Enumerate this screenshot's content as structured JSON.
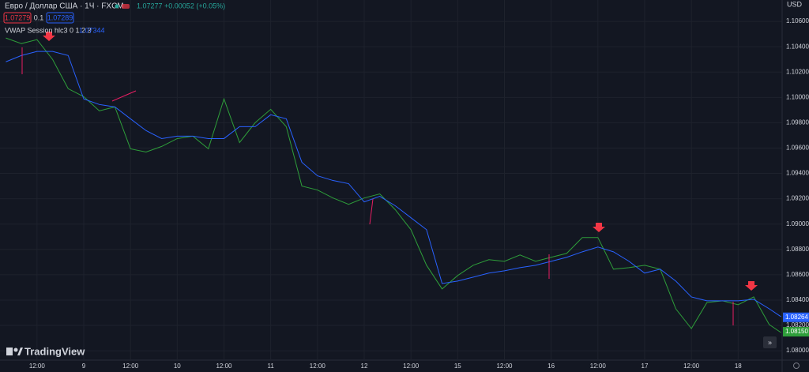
{
  "chart_data": {
    "type": "line",
    "title": "Евро / Доллар США · 1Ч · FXCM",
    "header_quote": "1.07277 +0.00052 (+0.05%)",
    "buttons": [
      "1.07279",
      "0.1",
      "1.07289"
    ],
    "indicator_value": "1.07344",
    "currency": "USD",
    "brand": "TradingView",
    "x": [
      4,
      8,
      12,
      16,
      20,
      24,
      28,
      32,
      36,
      40,
      44,
      48,
      52,
      56,
      60,
      64,
      68,
      72,
      76,
      80,
      84,
      88,
      92,
      96,
      100,
      104,
      108,
      112,
      116,
      120,
      124,
      128,
      132,
      136,
      140,
      144,
      148,
      152,
      156,
      160,
      164,
      168,
      172,
      176,
      180,
      184,
      188,
      192,
      196,
      200,
      203
    ],
    "xlim": [
      2.5,
      203.3
    ],
    "xticks": [
      {
        "value": 12,
        "label": "12:00"
      },
      {
        "value": 24,
        "label": "9"
      },
      {
        "value": 36,
        "label": "12:00"
      },
      {
        "value": 48,
        "label": "10"
      },
      {
        "value": 60,
        "label": "12:00"
      },
      {
        "value": 72,
        "label": "11"
      },
      {
        "value": 84,
        "label": "12:00"
      },
      {
        "value": 96,
        "label": "12"
      },
      {
        "value": 108,
        "label": "12:00"
      },
      {
        "value": 120,
        "label": "15"
      },
      {
        "value": 132,
        "label": "12:00"
      },
      {
        "value": 144,
        "label": "16"
      },
      {
        "value": 156,
        "label": "12:00"
      },
      {
        "value": 168,
        "label": "17"
      },
      {
        "value": 180,
        "label": "12:00"
      },
      {
        "value": 192,
        "label": "18"
      }
    ],
    "ylim": [
      1.07932,
      1.10769
    ],
    "yticks": [
      {
        "value": 1.106,
        "label": "1.10600"
      },
      {
        "value": 1.104,
        "label": "1.10400"
      },
      {
        "value": 1.102,
        "label": "1.10200"
      },
      {
        "value": 1.1,
        "label": "1.10000"
      },
      {
        "value": 1.098,
        "label": "1.09800"
      },
      {
        "value": 1.096,
        "label": "1.09600"
      },
      {
        "value": 1.094,
        "label": "1.09400"
      },
      {
        "value": 1.092,
        "label": "1.09200"
      },
      {
        "value": 1.09,
        "label": "1.09000"
      },
      {
        "value": 1.088,
        "label": "1.08800"
      },
      {
        "value": 1.086,
        "label": "1.08600"
      },
      {
        "value": 1.084,
        "label": "1.08400"
      },
      {
        "value": 1.082,
        "label": "1.08200"
      },
      {
        "value": 1.08,
        "label": "1.08000"
      }
    ],
    "grid": true,
    "series": [
      {
        "color": "#2e9e3a",
        "last_label": "1.08150",
        "last_value": 1.0815,
        "values": [
          1.10469,
          1.10425,
          1.10456,
          1.103,
          1.10069,
          1.10006,
          1.09894,
          1.09925,
          1.09594,
          1.09569,
          1.09613,
          1.09675,
          1.09694,
          1.09594,
          1.09988,
          1.09644,
          1.098,
          1.09906,
          1.09769,
          1.093,
          1.09269,
          1.09206,
          1.09156,
          1.09206,
          1.09238,
          1.09113,
          1.08956,
          1.08675,
          1.08488,
          1.08594,
          1.08675,
          1.08719,
          1.08706,
          1.08756,
          1.08706,
          1.08738,
          1.08769,
          1.08894,
          1.08894,
          1.08644,
          1.08656,
          1.08675,
          1.08644,
          1.08331,
          1.08175,
          1.08381,
          1.08394,
          1.08363,
          1.08425,
          1.08206,
          1.08144
        ]
      },
      {
        "name": "VWAP Session hlc3 0 1 2 3",
        "color": "#2962ff",
        "last_label": "1.08264",
        "last_value": 1.08264,
        "values": [
          1.10281,
          1.10331,
          1.10363,
          1.10363,
          1.10331,
          1.09988,
          1.09944,
          1.09925,
          1.09831,
          1.09738,
          1.09675,
          1.09694,
          1.09694,
          1.09675,
          1.09675,
          1.09769,
          1.09769,
          1.09863,
          1.09831,
          1.09488,
          1.09381,
          1.09344,
          1.09319,
          1.09175,
          1.09219,
          1.09144,
          1.0905,
          1.08956,
          1.08531,
          1.0855,
          1.08581,
          1.08613,
          1.08631,
          1.08656,
          1.08675,
          1.08706,
          1.08738,
          1.08781,
          1.08819,
          1.08781,
          1.08706,
          1.08613,
          1.08644,
          1.0855,
          1.08425,
          1.08394,
          1.08394,
          1.08394,
          1.08406,
          1.08331,
          1.08269
        ]
      }
    ]
  }
}
